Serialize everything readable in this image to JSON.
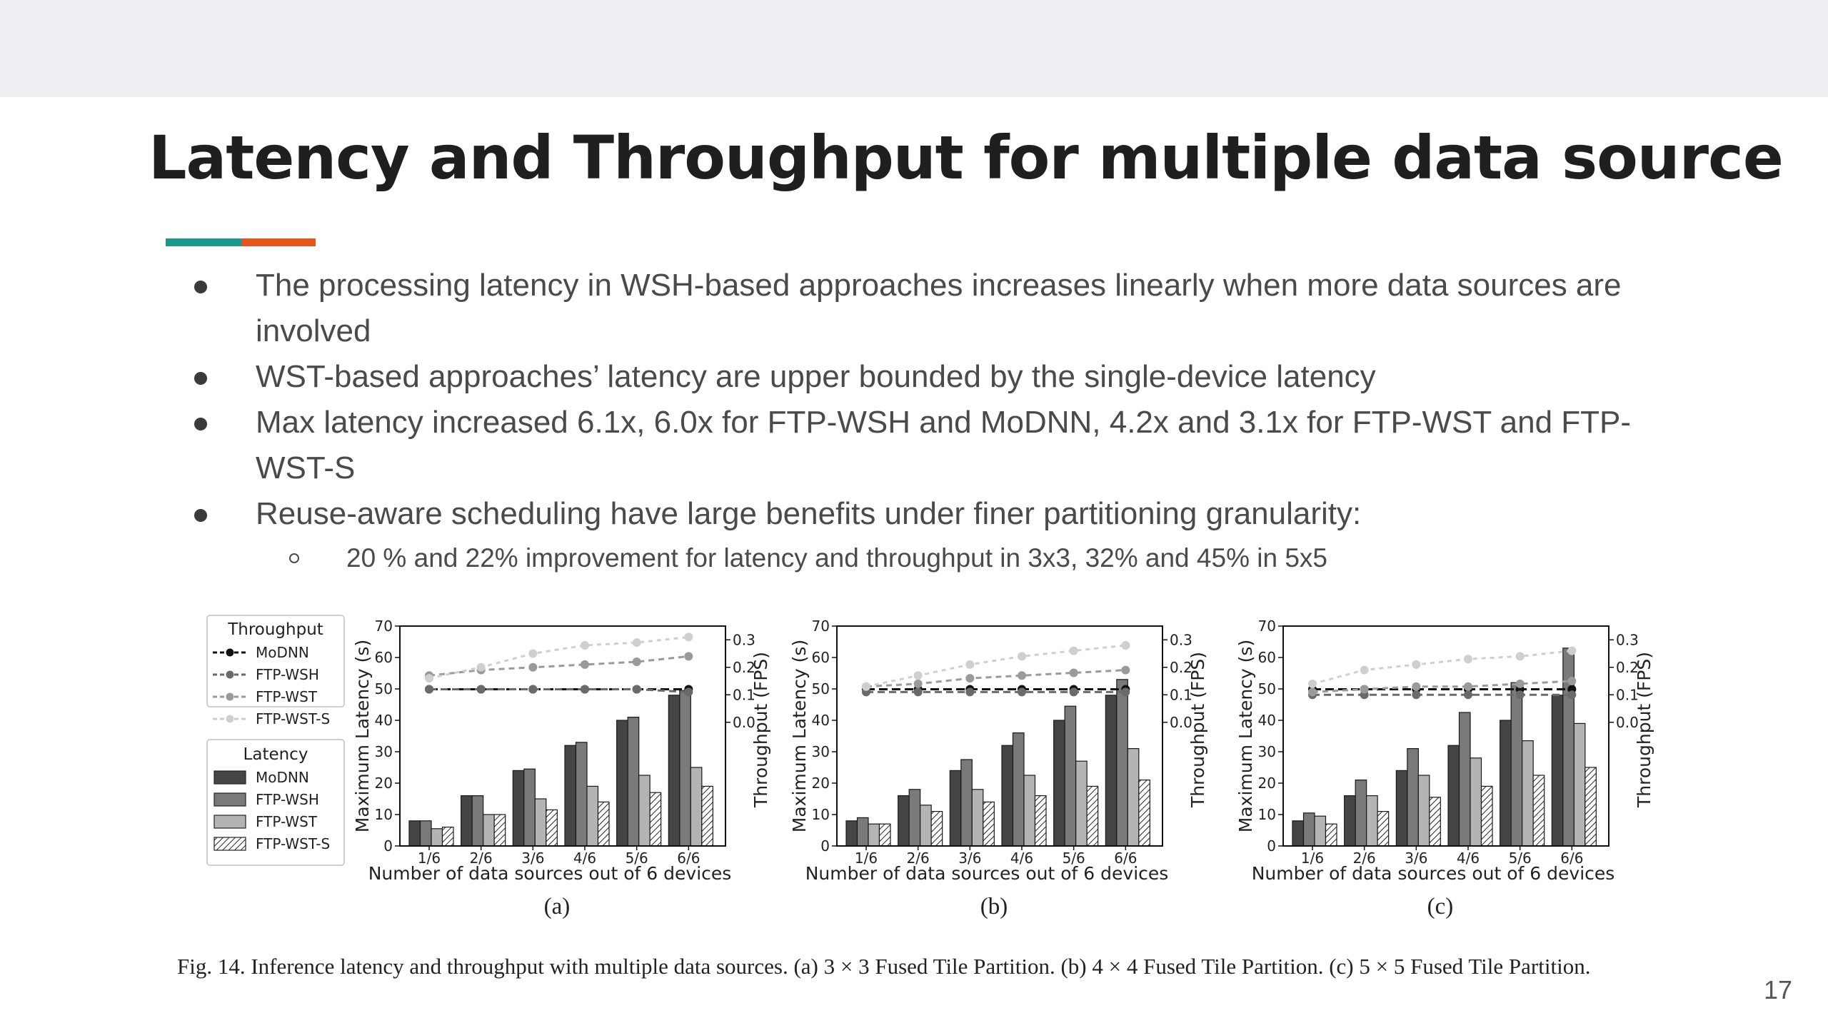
{
  "slide": {
    "title": "Latency and Throughput for multiple data source",
    "accent_colors": [
      "#1a9a8a",
      "#e0561b"
    ],
    "bullets": [
      "The processing latency in WSH-based approaches increases  linearly when more data sources are involved",
      "WST-based approaches’ latency are upper bounded by the single-device latency",
      "Max latency increased 6.1x, 6.0x for FTP-WSH and MoDNN, 4.2x and 3.1x for FTP-WST and FTP-WST-S",
      "Reuse-aware scheduling have large benefits under finer partitioning granularity:"
    ],
    "sub_bullet": "20 % and 22% improvement for latency and throughput in 3x3, 32% and 45% in 5x5",
    "caption": "Fig. 14.   Inference latency and throughput with multiple data sources. (a) 3 × 3 Fused Tile Partition. (b) 4 × 4 Fused Tile Partition. (c) 5 × 5 Fused Tile Partition.",
    "page_number": "17"
  },
  "legend": {
    "throughput_title": "Throughput",
    "latency_title": "Latency",
    "entries": [
      "MoDNN",
      "FTP-WSH",
      "FTP-WST",
      "FTP-WST-S"
    ]
  },
  "series_colors": {
    "bars": [
      "#454545",
      "#7a7a7a",
      "#b4b4b4",
      "#ffffff"
    ],
    "lines": [
      "#111111",
      "#6a6a6a",
      "#9a9a9a",
      "#cfcfcf"
    ]
  },
  "chart_data": [
    {
      "type": "bar",
      "panel_label": "(a)",
      "categories": [
        "1/6",
        "2/6",
        "3/6",
        "4/6",
        "5/6",
        "6/6"
      ],
      "xlabel": "Number of data sources out of 6 devices",
      "ylabel": "Maximum Latency (s)",
      "y2label": "Throughput (FPS)",
      "ylim": [
        0,
        70
      ],
      "yticks": [
        0,
        10,
        20,
        30,
        40,
        50,
        60,
        70
      ],
      "y2lim": [
        -0.45,
        0.35
      ],
      "y2ticks": [
        0.0,
        0.1,
        0.2,
        0.3
      ],
      "series": [
        {
          "name": "MoDNN",
          "values": [
            8,
            16,
            24,
            32,
            40,
            48
          ]
        },
        {
          "name": "FTP-WSH",
          "values": [
            8,
            16,
            24.5,
            33,
            41,
            49.5
          ]
        },
        {
          "name": "FTP-WST",
          "values": [
            5.5,
            10,
            15,
            19,
            22.5,
            25
          ]
        },
        {
          "name": "FTP-WST-S",
          "values": [
            6,
            10,
            11.5,
            14,
            17,
            19
          ]
        }
      ],
      "throughput": [
        {
          "name": "MoDNN",
          "values": [
            0.12,
            0.12,
            0.12,
            0.12,
            0.12,
            0.12
          ]
        },
        {
          "name": "FTP-WSH",
          "values": [
            0.12,
            0.12,
            0.12,
            0.12,
            0.12,
            0.11
          ]
        },
        {
          "name": "FTP-WST",
          "values": [
            0.17,
            0.19,
            0.2,
            0.21,
            0.22,
            0.24
          ]
        },
        {
          "name": "FTP-WST-S",
          "values": [
            0.16,
            0.2,
            0.25,
            0.28,
            0.29,
            0.31
          ]
        }
      ]
    },
    {
      "type": "bar",
      "panel_label": "(b)",
      "categories": [
        "1/6",
        "2/6",
        "3/6",
        "4/6",
        "5/6",
        "6/6"
      ],
      "xlabel": "Number of data sources out of 6 devices",
      "ylabel": "Maximum Latency (s)",
      "y2label": "Throughput (FPS)",
      "ylim": [
        0,
        70
      ],
      "yticks": [
        0,
        10,
        20,
        30,
        40,
        50,
        60,
        70
      ],
      "y2lim": [
        -0.45,
        0.35
      ],
      "y2ticks": [
        0.0,
        0.1,
        0.2,
        0.3
      ],
      "series": [
        {
          "name": "MoDNN",
          "values": [
            8,
            16,
            24,
            32,
            40,
            48
          ]
        },
        {
          "name": "FTP-WSH",
          "values": [
            9,
            18,
            27.5,
            36,
            44.5,
            53
          ]
        },
        {
          "name": "FTP-WST",
          "values": [
            7,
            13,
            18,
            22.5,
            27,
            31
          ]
        },
        {
          "name": "FTP-WST-S",
          "values": [
            7,
            11,
            14,
            16,
            19,
            21
          ]
        }
      ],
      "throughput": [
        {
          "name": "MoDNN",
          "values": [
            0.12,
            0.12,
            0.12,
            0.12,
            0.12,
            0.12
          ]
        },
        {
          "name": "FTP-WSH",
          "values": [
            0.11,
            0.11,
            0.11,
            0.11,
            0.11,
            0.11
          ]
        },
        {
          "name": "FTP-WST",
          "values": [
            0.13,
            0.14,
            0.16,
            0.17,
            0.18,
            0.19
          ]
        },
        {
          "name": "FTP-WST-S",
          "values": [
            0.13,
            0.17,
            0.21,
            0.24,
            0.26,
            0.28
          ]
        }
      ]
    },
    {
      "type": "bar",
      "panel_label": "(c)",
      "categories": [
        "1/6",
        "2/6",
        "3/6",
        "4/6",
        "5/6",
        "6/6"
      ],
      "xlabel": "Number of data sources out of 6 devices",
      "ylabel": "Maximum Latency (s)",
      "y2label": "Throughput (FPS)",
      "ylim": [
        0,
        70
      ],
      "yticks": [
        0,
        10,
        20,
        30,
        40,
        50,
        60,
        70
      ],
      "y2lim": [
        -0.45,
        0.35
      ],
      "y2ticks": [
        0.0,
        0.1,
        0.2,
        0.3
      ],
      "series": [
        {
          "name": "MoDNN",
          "values": [
            8,
            16,
            24,
            32,
            40,
            48
          ]
        },
        {
          "name": "FTP-WSH",
          "values": [
            10.5,
            21,
            31,
            42.5,
            52,
            63
          ]
        },
        {
          "name": "FTP-WST",
          "values": [
            9.5,
            16,
            22.5,
            28,
            33.5,
            39
          ]
        },
        {
          "name": "FTP-WST-S",
          "values": [
            7,
            11,
            15.5,
            19,
            22.5,
            25
          ]
        }
      ],
      "throughput": [
        {
          "name": "MoDNN",
          "values": [
            0.12,
            0.12,
            0.12,
            0.12,
            0.12,
            0.12
          ]
        },
        {
          "name": "FTP-WSH",
          "values": [
            0.1,
            0.1,
            0.1,
            0.1,
            0.1,
            0.1
          ]
        },
        {
          "name": "FTP-WST",
          "values": [
            0.11,
            0.12,
            0.13,
            0.13,
            0.14,
            0.15
          ]
        },
        {
          "name": "FTP-WST-S",
          "values": [
            0.14,
            0.19,
            0.21,
            0.23,
            0.24,
            0.26
          ]
        }
      ]
    }
  ]
}
